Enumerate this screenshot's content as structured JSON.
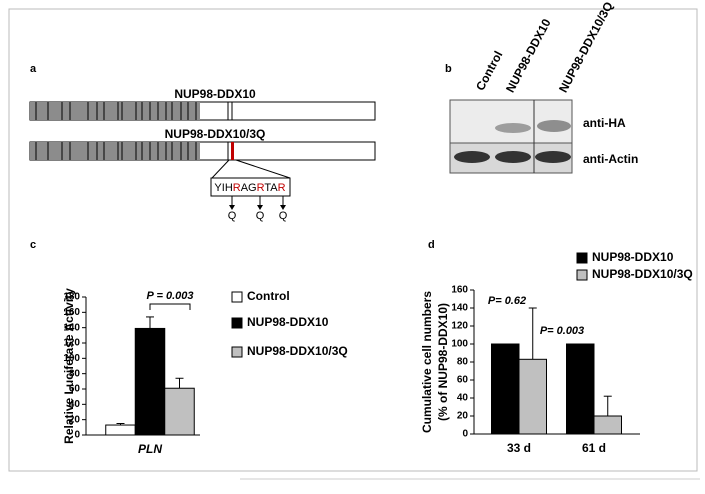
{
  "panel_a": {
    "label": "a",
    "constructs": [
      "NUP98-DDX10",
      "NUP98-DDX10/3Q"
    ],
    "sequence": [
      "YIH",
      "R",
      "AG",
      "R",
      "TA",
      "R"
    ],
    "mutations": [
      "Q",
      "Q",
      "Q"
    ]
  },
  "panel_b": {
    "label": "b",
    "lanes": [
      "Control",
      "NUP98-DDX10",
      "NUP98-DDX10/3Q"
    ],
    "blots": [
      "anti-HA",
      "anti-Actin"
    ]
  },
  "chart_data": [
    {
      "type": "bar",
      "panel_label": "c",
      "ylabel": "Relative Luciferase Activity",
      "categories": [
        "PLN"
      ],
      "series": [
        {
          "name": "Control",
          "color": "#ffffff",
          "values": [
            13
          ],
          "errors": [
            2
          ]
        },
        {
          "name": "NUP98-DDX10",
          "color": "#000000",
          "values": [
            139
          ],
          "errors": [
            15
          ]
        },
        {
          "name": "NUP98-DDX10/3Q",
          "color": "#c0c0c0",
          "values": [
            61
          ],
          "errors": [
            13
          ]
        }
      ],
      "ylim": [
        0,
        180
      ],
      "yticks": [
        0,
        20,
        40,
        60,
        80,
        100,
        120,
        140,
        160,
        180
      ],
      "annotations": [
        "P = 0.003"
      ]
    },
    {
      "type": "bar",
      "panel_label": "d",
      "ylabel": [
        "Cumulative  cell numbers",
        "(% of NUP98-DDX10)"
      ],
      "categories": [
        "33 d",
        "61 d"
      ],
      "series": [
        {
          "name": "NUP98-DDX10",
          "color": "#000000",
          "values": [
            100,
            100
          ]
        },
        {
          "name": "NUP98-DDX10/3Q",
          "color": "#c0c0c0",
          "values": [
            83,
            20
          ],
          "errors": [
            57,
            22
          ]
        }
      ],
      "ylim": [
        0,
        160
      ],
      "yticks": [
        0,
        20,
        40,
        60,
        80,
        100,
        120,
        140,
        160
      ],
      "annotations": [
        "P= 0.62",
        "P= 0.003"
      ]
    }
  ]
}
